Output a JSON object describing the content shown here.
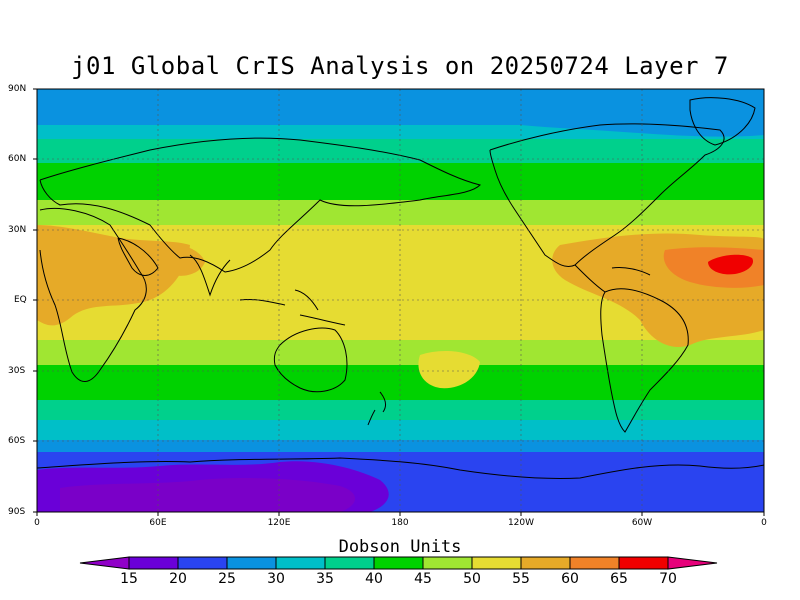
{
  "title": "j01 Global CrIS Analysis on 20250724 Layer 7",
  "units_label": "Dobson Units",
  "lat_ticks": [
    "90N",
    "60N",
    "30N",
    "EQ",
    "30S",
    "60S",
    "90S"
  ],
  "lon_ticks": [
    "0",
    "60E",
    "120E",
    "180",
    "120W",
    "60W",
    "0"
  ],
  "colorbar": {
    "labels": [
      "15",
      "20",
      "25",
      "30",
      "35",
      "40",
      "45",
      "50",
      "55",
      "60",
      "65",
      "70"
    ],
    "colors": [
      "#9000c8",
      "#6a00d8",
      "#2a44f0",
      "#0a92e0",
      "#00bfc8",
      "#00d08c",
      "#00d200",
      "#a0e632",
      "#e6dc32",
      "#e6aa28",
      "#f08228",
      "#f00000",
      "#e6007a"
    ]
  },
  "map": {
    "variable": "ozone column, layer 7",
    "projection": "cylindrical equidistant",
    "lon_range": [
      0,
      360
    ],
    "lat_range": [
      -90,
      90
    ],
    "gridlines": "dotted"
  }
}
